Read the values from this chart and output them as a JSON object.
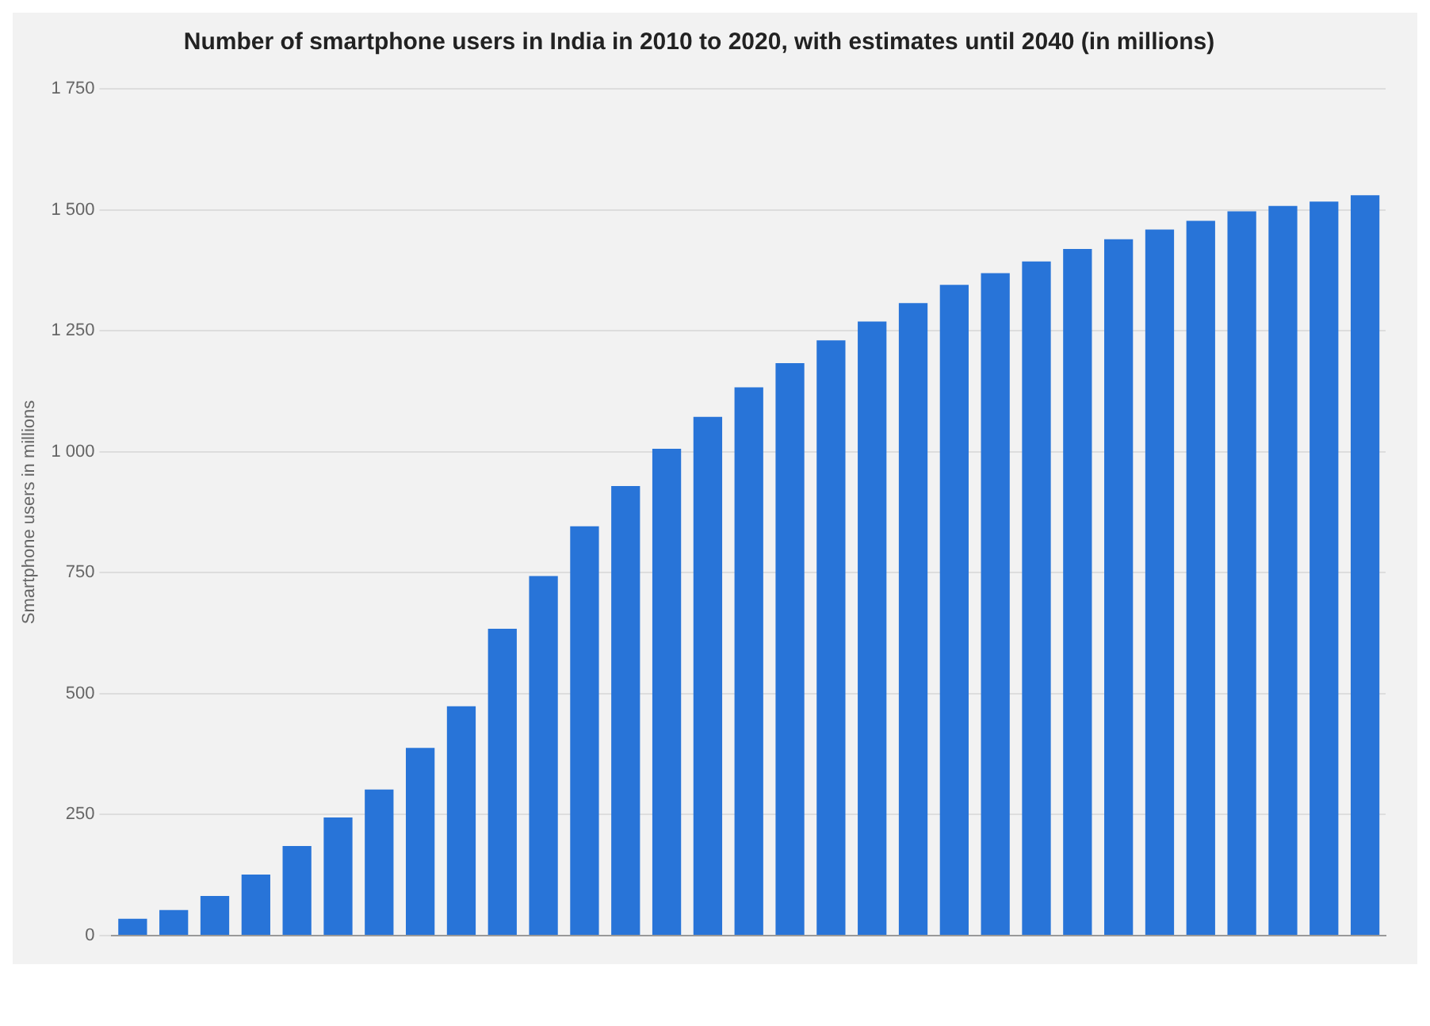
{
  "chart_data": {
    "type": "bar",
    "title": "Number of smartphone users in India in 2010 to 2020, with estimates until 2040 (in millions)",
    "ylabel": "Smartphone users in millions",
    "categories": [
      null,
      null,
      null,
      null,
      null,
      null,
      null,
      null,
      null,
      null,
      null,
      null,
      null,
      null,
      null,
      null,
      null,
      null,
      null,
      null,
      null,
      null,
      null,
      null,
      null,
      null,
      null,
      null,
      null,
      null,
      null
    ],
    "values": [
      35,
      53,
      82,
      126,
      185,
      244,
      302,
      388,
      474,
      634,
      743,
      846,
      929,
      1006,
      1072,
      1133,
      1183,
      1230,
      1269,
      1307,
      1345,
      1369,
      1393,
      1419,
      1439,
      1459,
      1477,
      1497,
      1508,
      1517,
      1530
    ],
    "color": "#2874d8",
    "ylim": [
      0,
      1750
    ],
    "yticks": [
      0,
      250,
      500,
      750,
      {
        "value": 1000,
        "label": "1 000"
      },
      {
        "value": 1250,
        "label": "1 250"
      },
      {
        "value": 1500,
        "label": "1 500"
      },
      {
        "value": 1750,
        "label": "1 750"
      }
    ],
    "grid": "y"
  }
}
